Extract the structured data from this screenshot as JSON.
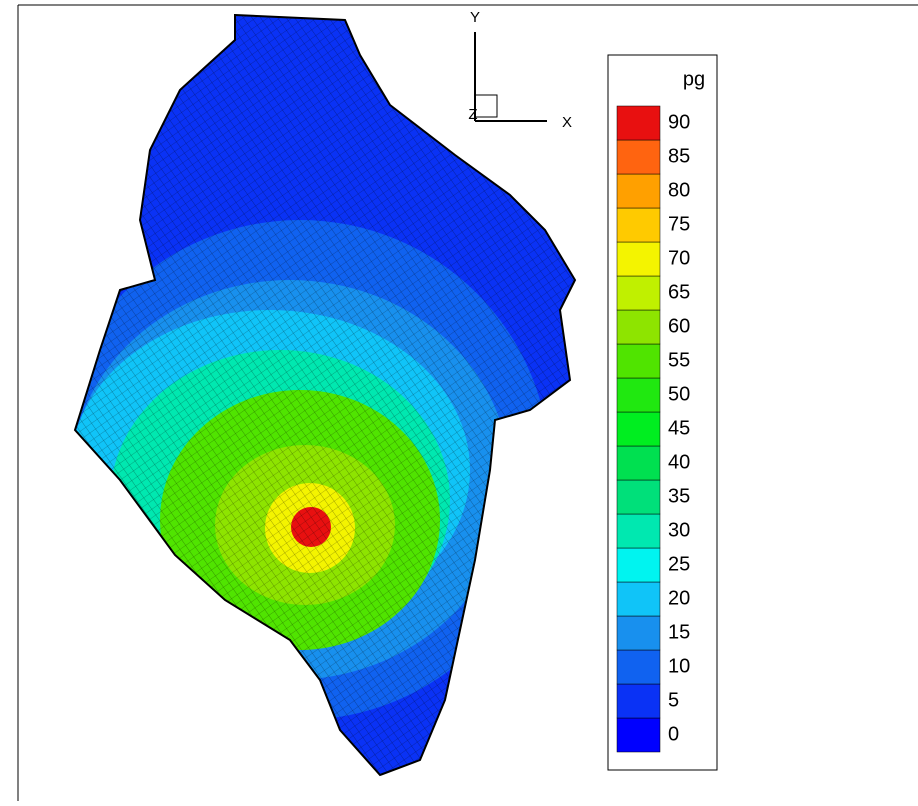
{
  "chart_data": {
    "type": "contour",
    "legend_title": "pg",
    "levels": [
      0,
      5,
      10,
      15,
      20,
      25,
      30,
      35,
      40,
      45,
      50,
      55,
      60,
      65,
      70,
      75,
      80,
      85,
      90
    ],
    "level_colors": [
      "#0000ff",
      "#0a32f5",
      "#1062f0",
      "#1890ee",
      "#10c4f8",
      "#00f4f0",
      "#00e8b0",
      "#00e07a",
      "#00e050",
      "#00ee20",
      "#20e810",
      "#50e400",
      "#8ee400",
      "#c0f000",
      "#f4f400",
      "#ffca00",
      "#ffa000",
      "#ff6410",
      "#e81010"
    ],
    "axes": {
      "x": "X",
      "y": "Y",
      "z": "Z"
    }
  }
}
